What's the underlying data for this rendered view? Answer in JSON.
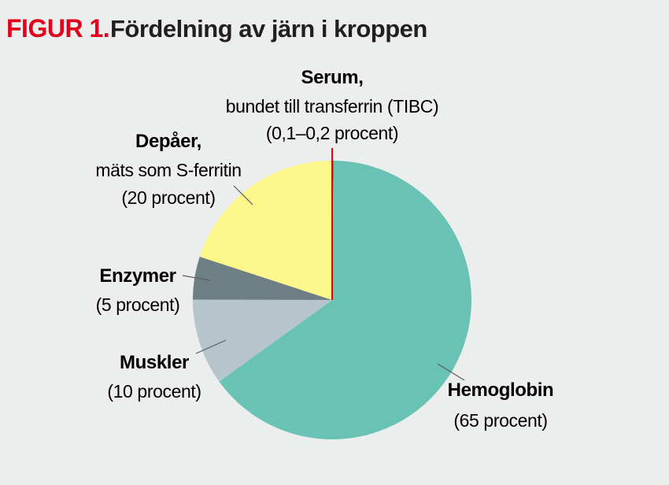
{
  "header": {
    "figure_label": "FIGUR 1.",
    "title": "Fördelning av järn i kroppen"
  },
  "colors": {
    "figure_label": "#e2001a",
    "background": "#eceded",
    "leader_line": "#5b5b5b"
  },
  "chart_data": {
    "type": "pie",
    "title": "Fördelning av järn i kroppen",
    "unit": "procent",
    "slices": [
      {
        "key": "serum",
        "name": "Serum,",
        "description": "bundet till transferrin (TIBC)",
        "value_text": "(0,1–0,2 procent)",
        "value": 0.15,
        "color": "#e2001a"
      },
      {
        "key": "hemoglobin",
        "name": "Hemoglobin",
        "description": "",
        "value_text": "(65 procent)",
        "value": 65,
        "color": "#69c3b5"
      },
      {
        "key": "muskler",
        "name": "Muskler",
        "description": "",
        "value_text": "(10 procent)",
        "value": 10,
        "color": "#b5c5cb"
      },
      {
        "key": "enzymer",
        "name": "Enzymer",
        "description": "",
        "value_text": "(5 procent)",
        "value": 5,
        "color": "#6d7f85"
      },
      {
        "key": "depaer",
        "name": "Depåer,",
        "description": "mäts som S-ferritin",
        "value_text": "(20 procent)",
        "value": 20,
        "color": "#fdf68b"
      }
    ]
  }
}
